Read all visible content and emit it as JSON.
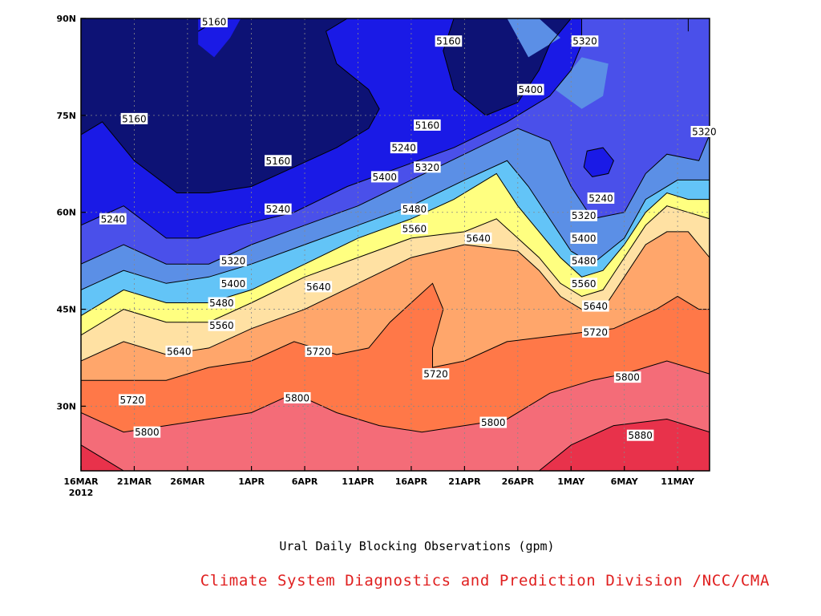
{
  "chart_data": {
    "type": "contour",
    "title": "Ural Daily Blocking Observations (gpm)",
    "credit": "Climate System Diagnostics and Prediction Division /NCC/CMA",
    "credit_color": "#e02020",
    "x_axis": {
      "start_day": 0,
      "end_day": 59,
      "ticks": [
        {
          "day": 0,
          "label": "16MAR",
          "sublabel": "2012"
        },
        {
          "day": 5,
          "label": "21MAR"
        },
        {
          "day": 10,
          "label": "26MAR"
        },
        {
          "day": 16,
          "label": "1APR"
        },
        {
          "day": 21,
          "label": "6APR"
        },
        {
          "day": 26,
          "label": "11APR"
        },
        {
          "day": 31,
          "label": "16APR"
        },
        {
          "day": 36,
          "label": "21APR"
        },
        {
          "day": 41,
          "label": "26APR"
        },
        {
          "day": 46,
          "label": "1MAY"
        },
        {
          "day": 51,
          "label": "6MAY"
        },
        {
          "day": 56,
          "label": "11MAY"
        }
      ]
    },
    "y_axis": {
      "ylim": [
        20,
        90
      ],
      "ticks": [
        {
          "lat": 30,
          "label": "30N"
        },
        {
          "lat": 45,
          "label": "45N"
        },
        {
          "lat": 60,
          "label": "60N"
        },
        {
          "lat": 75,
          "label": "75N"
        },
        {
          "lat": 90,
          "label": "90N"
        }
      ]
    },
    "grid": true,
    "levels": [
      5160,
      5240,
      5320,
      5400,
      5480,
      5560,
      5640,
      5720,
      5800,
      5880
    ],
    "band_colors": [
      "#0d1275",
      "#1a1ae6",
      "#4a50ea",
      "#5b8fe6",
      "#63c4f7",
      "#ffff80",
      "#ffe1a3",
      "#ffa66b",
      "#ff7848",
      "#f46c78",
      "#e8324b"
    ],
    "contour_lines": [
      {
        "level": 5160,
        "points": [
          [
            0,
            72
          ],
          [
            2,
            74
          ],
          [
            5,
            68
          ],
          [
            9,
            63
          ],
          [
            12,
            63
          ],
          [
            16,
            64
          ],
          [
            20,
            67
          ],
          [
            24,
            70
          ],
          [
            27,
            73
          ],
          [
            28,
            76
          ],
          [
            27,
            79
          ],
          [
            24,
            83
          ],
          [
            23,
            88
          ],
          [
            25,
            90
          ]
        ]
      },
      {
        "level": 5160,
        "points": [
          [
            35,
            90
          ],
          [
            34,
            85
          ],
          [
            35,
            79
          ],
          [
            38,
            75
          ],
          [
            41,
            77
          ],
          [
            43,
            82
          ],
          [
            44,
            86
          ],
          [
            46,
            90
          ]
        ]
      },
      {
        "level": 5160,
        "points": [
          [
            11,
            88
          ],
          [
            13,
            90
          ]
        ]
      },
      {
        "level": 5240,
        "points": [
          [
            0,
            58
          ],
          [
            4,
            61
          ],
          [
            8,
            56
          ],
          [
            11,
            56
          ],
          [
            15,
            58
          ],
          [
            20,
            60
          ],
          [
            25,
            64
          ],
          [
            30,
            67
          ],
          [
            35,
            70
          ],
          [
            40,
            74
          ],
          [
            44,
            78
          ],
          [
            46,
            82
          ],
          [
            47,
            86
          ],
          [
            47,
            90
          ]
        ]
      },
      {
        "level": 5240,
        "points": [
          [
            47.2,
            67
          ],
          [
            48,
            65.5
          ],
          [
            49.5,
            66
          ],
          [
            50,
            68
          ],
          [
            49,
            70
          ],
          [
            47.5,
            69.5
          ],
          [
            47.2,
            67
          ]
        ]
      },
      {
        "level": 5240,
        "points": [
          [
            57,
            90
          ],
          [
            57,
            88
          ]
        ]
      },
      {
        "level": 5320,
        "points": [
          [
            0,
            52
          ],
          [
            4,
            55
          ],
          [
            8,
            52
          ],
          [
            12,
            52
          ],
          [
            16,
            55
          ],
          [
            21,
            58
          ],
          [
            26,
            61
          ],
          [
            31,
            65
          ],
          [
            36,
            69
          ],
          [
            41,
            73
          ],
          [
            44,
            71
          ],
          [
            46,
            64
          ],
          [
            48,
            59
          ],
          [
            51,
            60
          ],
          [
            53,
            66
          ],
          [
            55,
            69
          ],
          [
            58,
            68
          ],
          [
            59,
            72
          ],
          [
            59,
            90
          ]
        ]
      },
      {
        "level": 5400,
        "points": [
          [
            0,
            48
          ],
          [
            4,
            51
          ],
          [
            8,
            49
          ],
          [
            12,
            50
          ],
          [
            16,
            52
          ],
          [
            21,
            55
          ],
          [
            26,
            58
          ],
          [
            31,
            61
          ],
          [
            36,
            65
          ],
          [
            40,
            68
          ],
          [
            42,
            64
          ],
          [
            44,
            59
          ],
          [
            46,
            54
          ],
          [
            48,
            52
          ],
          [
            51,
            56
          ],
          [
            53,
            62
          ],
          [
            56,
            65
          ],
          [
            59,
            65
          ]
        ]
      },
      {
        "level": 5480,
        "points": [
          [
            0,
            44
          ],
          [
            4,
            48
          ],
          [
            8,
            46
          ],
          [
            12,
            46
          ],
          [
            16,
            48
          ],
          [
            21,
            52
          ],
          [
            26,
            56
          ],
          [
            31,
            59
          ],
          [
            35,
            62
          ],
          [
            39,
            66
          ],
          [
            41,
            61
          ],
          [
            43,
            57
          ],
          [
            45,
            53
          ],
          [
            47,
            50
          ],
          [
            49,
            51
          ],
          [
            51,
            55
          ],
          [
            53,
            60
          ],
          [
            55,
            63
          ],
          [
            57,
            62
          ],
          [
            59,
            62
          ]
        ]
      },
      {
        "level": 5560,
        "points": [
          [
            0,
            41
          ],
          [
            4,
            45
          ],
          [
            8,
            43
          ],
          [
            12,
            43
          ],
          [
            16,
            46
          ],
          [
            21,
            50
          ],
          [
            26,
            53
          ],
          [
            31,
            56
          ],
          [
            36,
            57
          ],
          [
            39,
            59
          ],
          [
            41,
            56
          ],
          [
            43,
            53
          ],
          [
            45,
            49
          ],
          [
            47,
            47
          ],
          [
            49,
            48
          ],
          [
            51,
            53
          ],
          [
            53,
            58
          ],
          [
            55,
            61
          ],
          [
            57,
            60
          ],
          [
            59,
            59
          ]
        ]
      },
      {
        "level": 5640,
        "points": [
          [
            0,
            37
          ],
          [
            4,
            40
          ],
          [
            8,
            38
          ],
          [
            12,
            39
          ],
          [
            16,
            42
          ],
          [
            21,
            45
          ],
          [
            26,
            49
          ],
          [
            31,
            53
          ],
          [
            36,
            55
          ],
          [
            41,
            54
          ],
          [
            43,
            51
          ],
          [
            45,
            47
          ],
          [
            47,
            45
          ],
          [
            49,
            45
          ],
          [
            51,
            50
          ],
          [
            53,
            55
          ],
          [
            55,
            57
          ],
          [
            57,
            57
          ],
          [
            59,
            53
          ]
        ]
      },
      {
        "level": 5720,
        "points": [
          [
            0,
            34
          ],
          [
            4,
            34
          ],
          [
            8,
            34
          ],
          [
            12,
            36
          ],
          [
            16,
            37
          ],
          [
            20,
            40
          ],
          [
            24,
            38
          ],
          [
            27,
            39
          ],
          [
            29,
            43
          ],
          [
            31,
            46
          ],
          [
            33,
            49
          ],
          [
            34,
            45
          ],
          [
            33,
            39
          ],
          [
            33,
            36
          ],
          [
            36,
            37
          ],
          [
            40,
            40
          ],
          [
            45,
            41
          ],
          [
            50,
            42
          ],
          [
            54,
            45
          ],
          [
            56,
            47
          ],
          [
            58,
            45
          ],
          [
            59,
            45
          ]
        ]
      },
      {
        "level": 5800,
        "points": [
          [
            0,
            29
          ],
          [
            4,
            26
          ],
          [
            8,
            27
          ],
          [
            12,
            28
          ],
          [
            16,
            29
          ],
          [
            20,
            32
          ],
          [
            24,
            29
          ],
          [
            28,
            27
          ],
          [
            32,
            26
          ],
          [
            36,
            27
          ],
          [
            40,
            28
          ],
          [
            44,
            32
          ],
          [
            48,
            34
          ],
          [
            51,
            35
          ],
          [
            55,
            37
          ],
          [
            59,
            35
          ]
        ]
      },
      {
        "level": 5880,
        "points": [
          [
            0,
            24
          ],
          [
            3,
            21
          ],
          [
            4,
            20
          ]
        ]
      },
      {
        "level": 5880,
        "points": [
          [
            43,
            20
          ],
          [
            46,
            24
          ],
          [
            50,
            27
          ],
          [
            55,
            28
          ],
          [
            59,
            26
          ]
        ]
      }
    ],
    "contour_labels": [
      {
        "text": "5160",
        "day": 12.5,
        "lat": 89.5
      },
      {
        "text": "5160",
        "day": 34.5,
        "lat": 86.5
      },
      {
        "text": "5160",
        "day": 5,
        "lat": 74.5
      },
      {
        "text": "5160",
        "day": 18.5,
        "lat": 68
      },
      {
        "text": "5160",
        "day": 32.5,
        "lat": 73.5
      },
      {
        "text": "5240",
        "day": 30.3,
        "lat": 70
      },
      {
        "text": "5240",
        "day": 3,
        "lat": 59
      },
      {
        "text": "5240",
        "day": 18.5,
        "lat": 60.5
      },
      {
        "text": "5240",
        "day": 48.8,
        "lat": 62.2
      },
      {
        "text": "5320",
        "day": 32.5,
        "lat": 67
      },
      {
        "text": "5320",
        "day": 14.3,
        "lat": 52.5
      },
      {
        "text": "5320",
        "day": 47.3,
        "lat": 86.5
      },
      {
        "text": "5320",
        "day": 47.2,
        "lat": 59.5
      },
      {
        "text": "5320",
        "day": 58.5,
        "lat": 72.5
      },
      {
        "text": "5400",
        "day": 28.5,
        "lat": 65.5
      },
      {
        "text": "5400",
        "day": 42.2,
        "lat": 79
      },
      {
        "text": "5400",
        "day": 14.3,
        "lat": 49
      },
      {
        "text": "5400",
        "day": 47.2,
        "lat": 56
      },
      {
        "text": "5480",
        "day": 31.3,
        "lat": 60.5
      },
      {
        "text": "5480",
        "day": 13.2,
        "lat": 46
      },
      {
        "text": "5480",
        "day": 47.2,
        "lat": 52.5
      },
      {
        "text": "5560",
        "day": 31.3,
        "lat": 57.5
      },
      {
        "text": "5560",
        "day": 13.2,
        "lat": 42.5
      },
      {
        "text": "5560",
        "day": 47.2,
        "lat": 49
      },
      {
        "text": "5640",
        "day": 37.3,
        "lat": 56
      },
      {
        "text": "5640",
        "day": 22.3,
        "lat": 48.5
      },
      {
        "text": "5640",
        "day": 9.2,
        "lat": 38.5
      },
      {
        "text": "5640",
        "day": 48.3,
        "lat": 45.5
      },
      {
        "text": "5720",
        "day": 22.3,
        "lat": 38.5
      },
      {
        "text": "5720",
        "day": 33.3,
        "lat": 35
      },
      {
        "text": "5720",
        "day": 4.8,
        "lat": 31
      },
      {
        "text": "5720",
        "day": 48.3,
        "lat": 41.5
      },
      {
        "text": "5800",
        "day": 20.3,
        "lat": 31.3
      },
      {
        "text": "5800",
        "day": 38.7,
        "lat": 27.5
      },
      {
        "text": "5800",
        "day": 6.2,
        "lat": 26
      },
      {
        "text": "5800",
        "day": 51.3,
        "lat": 34.5
      },
      {
        "text": "5880",
        "day": 52.5,
        "lat": 25.5
      }
    ]
  }
}
